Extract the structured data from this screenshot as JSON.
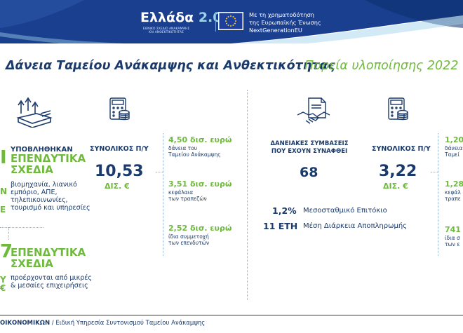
{
  "header": {
    "logo_title": "Ελλάδα",
    "logo_version": "2.0",
    "logo_sub_line1": "ΕΘΝΙΚΟ ΣΧΕΔΙΟ ΑΝΑΚΑΜΨΗΣ",
    "logo_sub_line2": "ΚΑΙ ΑΝΘΕΚΤΙΚΟΤΗΤΑΣ",
    "eu_line1": "Με τη χρηματοδότηση",
    "eu_line2": "της Ευρωπαϊκής Ένωσης",
    "eu_line3": "NextGenerationEU"
  },
  "title": {
    "main": "Δάνεια Ταμείου Ανάκαμψης και Ανθεκτικότητας",
    "year": "Πορεία υλοποίησης 2022"
  },
  "left": {
    "big_number": "Ι",
    "heading_small": "ΥΠΟΒΛΗΘΗΚΑΝ",
    "heading_big1": "ΕΠΕΝΔΥΤΙΚΑ",
    "heading_big2": "ΣΧΕΔΙΑ",
    "sectors1": "βιομηχανία, λιανικό",
    "sectors2": "εμπόριο, ΑΠΕ,",
    "sectors3": "τηλεπικοινωνίες,",
    "sectors4": "τουρισμό και υπηρεσίες",
    "cut_N": "Ν",
    "cut_E": "Ε",
    "number2": "7",
    "heading2_1": "ΕΠΕΝΔΥΤΙΚΑ",
    "heading2_2": "ΣΧΕΔΙΑ",
    "cut_Y": "Υ",
    "cut_euro": "€",
    "desc2_1": "προέρχονται από μικρές",
    "desc2_2": "& μεσαίες επιχειρήσεις"
  },
  "budget1": {
    "label": "ΣΥΝΟΛΙΚΟΣ Π/Υ",
    "amount": "10,53",
    "unit": "ΔΙΣ. €",
    "items": [
      {
        "value": "4,50 δισ. ευρώ",
        "desc1": "δάνεια του",
        "desc2": "Ταμείου Ανάκαμψης"
      },
      {
        "value": "3,51 δισ. ευρώ",
        "desc1": "κεφάλαια",
        "desc2": "των τραπεζών"
      },
      {
        "value": "2,52 δισ. ευρώ",
        "desc1": "ίδια συμμετοχή",
        "desc2": "των επενδυτών"
      }
    ]
  },
  "contracts": {
    "label1": "ΔΑΝΕΙΑΚΕΣ ΣΥΜΒΑΣΕΙΣ",
    "label2": "ΠΟΥ ΕΧΟΥΝ ΣΥΝΑΦΘΕΙ",
    "value": "68"
  },
  "budget2": {
    "label": "ΣΥΝΟΛΙΚΟΣ Π/Υ",
    "amount": "3,22",
    "unit": "ΔΙΣ. €"
  },
  "rates": {
    "rate_value": "1,2%",
    "rate_label": "Μεσοσταθμικό Επιτόκιο",
    "years_value": "11 ΕΤΗ",
    "years_label": "Μέση Διάρκεια Αποπληρωμής"
  },
  "right_cut": {
    "item1_value": "1,20",
    "item1_d1": "δάνεια",
    "item1_d2": "Ταμεί",
    "item2_value": "1,28",
    "item2_d1": "κεφάλ",
    "item2_d2": "τραπε",
    "item3_value": "741",
    "item3_d1": "ίδια σ",
    "item3_d2": "των ε"
  },
  "footer": {
    "ministry": "ΟΙΚΟΝΟΜΙΚΩΝ",
    "agency": " / Ειδική Υπηρεσία Συντονισμού Ταμείου Ανάκαμψης"
  },
  "colors": {
    "navy": "#1a3a6b",
    "green": "#6fba3c",
    "light_blue": "#9bd1e8"
  }
}
